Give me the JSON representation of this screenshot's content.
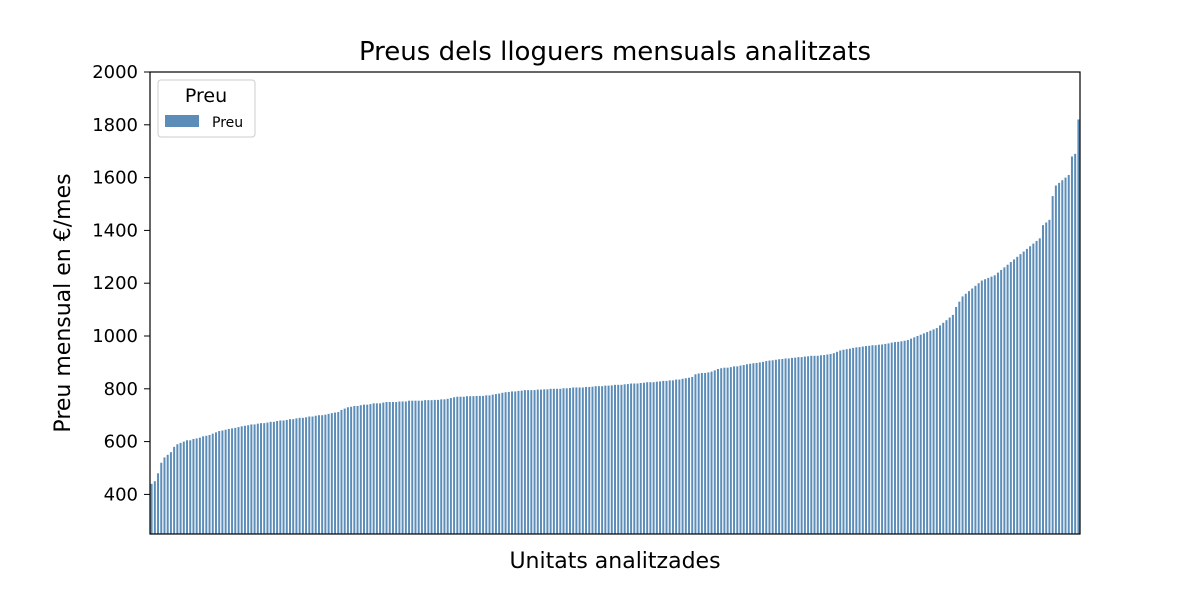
{
  "chart_data": {
    "type": "bar",
    "title": "Preus dels lloguers mensuals analitzats",
    "xlabel": "Unitats analitzades",
    "ylabel": "Preu mensual en €/mes",
    "ylim": [
      250,
      2000
    ],
    "yticks": [
      400,
      600,
      800,
      1000,
      1200,
      1400,
      1600,
      1800,
      2000
    ],
    "grid": false,
    "sorted": "ascending",
    "color": "#5b8db8",
    "legend": {
      "title": "Preu",
      "placement": "top-left",
      "entries": [
        "Preu"
      ]
    },
    "series": [
      {
        "name": "Preu",
        "values": [
          440,
          450,
          480,
          520,
          540,
          550,
          560,
          580,
          590,
          595,
          600,
          605,
          605,
          610,
          612,
          615,
          620,
          622,
          625,
          630,
          635,
          640,
          642,
          645,
          648,
          650,
          652,
          655,
          658,
          660,
          662,
          665,
          665,
          668,
          670,
          670,
          672,
          675,
          675,
          678,
          680,
          680,
          682,
          685,
          685,
          688,
          690,
          690,
          692,
          695,
          695,
          698,
          700,
          700,
          702,
          705,
          708,
          710,
          712,
          720,
          725,
          730,
          732,
          735,
          735,
          738,
          740,
          740,
          742,
          745,
          745,
          745,
          748,
          750,
          750,
          750,
          750,
          752,
          752,
          752,
          755,
          755,
          755,
          755,
          755,
          757,
          757,
          757,
          758,
          758,
          760,
          760,
          762,
          765,
          768,
          770,
          770,
          770,
          772,
          772,
          772,
          773,
          773,
          773,
          775,
          775,
          778,
          780,
          782,
          785,
          787,
          788,
          790,
          790,
          792,
          793,
          795,
          795,
          795,
          795,
          797,
          797,
          798,
          798,
          800,
          800,
          800,
          800,
          802,
          802,
          803,
          805,
          805,
          805,
          805,
          807,
          807,
          808,
          810,
          810,
          810,
          812,
          812,
          813,
          815,
          815,
          815,
          817,
          818,
          820,
          820,
          820,
          822,
          823,
          825,
          825,
          825,
          827,
          828,
          830,
          830,
          832,
          832,
          835,
          835,
          838,
          840,
          842,
          845,
          855,
          858,
          860,
          860,
          862,
          865,
          870,
          875,
          878,
          880,
          880,
          882,
          885,
          885,
          888,
          890,
          893,
          895,
          897,
          898,
          900,
          902,
          905,
          907,
          908,
          910,
          912,
          913,
          915,
          915,
          917,
          918,
          920,
          920,
          922,
          923,
          925,
          925,
          925,
          927,
          928,
          930,
          932,
          935,
          940,
          945,
          948,
          950,
          952,
          955,
          957,
          958,
          960,
          962,
          963,
          965,
          965,
          967,
          968,
          970,
          972,
          975,
          977,
          978,
          980,
          982,
          985,
          990,
          995,
          1000,
          1005,
          1010,
          1015,
          1020,
          1025,
          1030,
          1040,
          1050,
          1060,
          1070,
          1080,
          1110,
          1130,
          1150,
          1160,
          1170,
          1180,
          1190,
          1200,
          1210,
          1215,
          1220,
          1225,
          1230,
          1240,
          1250,
          1260,
          1270,
          1280,
          1290,
          1300,
          1310,
          1320,
          1330,
          1340,
          1350,
          1360,
          1370,
          1420,
          1430,
          1440,
          1530,
          1570,
          1580,
          1590,
          1600,
          1610,
          1680,
          1690,
          1820
        ]
      }
    ]
  }
}
